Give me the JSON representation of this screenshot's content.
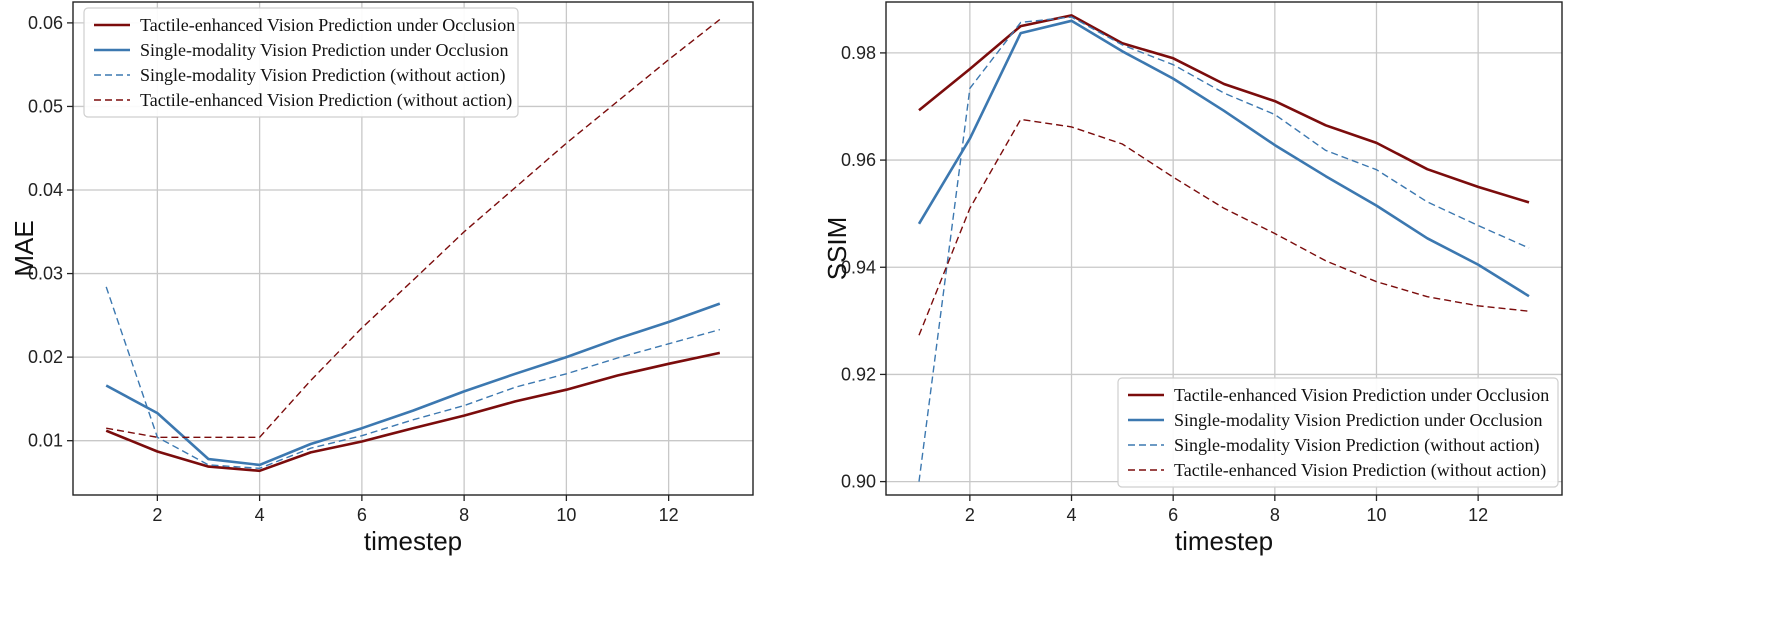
{
  "chart_data": [
    {
      "type": "line",
      "xlabel": "timestep",
      "ylabel": "MAE",
      "x": [
        1,
        2,
        3,
        4,
        5,
        6,
        7,
        8,
        9,
        10,
        11,
        12,
        13
      ],
      "xticks": [
        2,
        4,
        6,
        8,
        10,
        12
      ],
      "xlim": [
        0.35,
        13.65
      ],
      "ylim": [
        0.0035,
        0.0625
      ],
      "yticks": [
        0.01,
        0.02,
        0.03,
        0.04,
        0.05,
        0.06
      ],
      "ytick_labels": [
        "0.01",
        "0.02",
        "0.03",
        "0.04",
        "0.05",
        "0.06"
      ],
      "grid": true,
      "legend_position": "top-left",
      "series": [
        {
          "name": "Tactile-enhanced Vision Prediction under Occlusion",
          "color": "#7b0c0c",
          "style": "solid",
          "values": [
            0.0112,
            0.0087,
            0.0069,
            0.0064,
            0.0086,
            0.0099,
            0.0115,
            0.013,
            0.0147,
            0.0161,
            0.0178,
            0.0192,
            0.0205
          ]
        },
        {
          "name": "Single-modality Vision Prediction under Occlusion",
          "color": "#3c78b0",
          "style": "solid",
          "values": [
            0.0166,
            0.0133,
            0.0078,
            0.0071,
            0.0096,
            0.0115,
            0.0136,
            0.0159,
            0.018,
            0.02,
            0.0222,
            0.0242,
            0.0264
          ]
        },
        {
          "name": "Single-modality Vision Prediction (without action)",
          "color": "#3c78b0",
          "style": "dashed",
          "values": [
            0.0284,
            0.0104,
            0.0071,
            0.0067,
            0.0091,
            0.0106,
            0.0125,
            0.0142,
            0.0164,
            0.018,
            0.0199,
            0.0216,
            0.0233
          ]
        },
        {
          "name": "Tactile-enhanced Vision Prediction (without action)",
          "color": "#7b0c0c",
          "style": "dashed",
          "values": [
            0.0115,
            0.0104,
            0.0104,
            0.0104,
            0.0172,
            0.0235,
            0.0292,
            0.035,
            0.0403,
            0.0456,
            0.0506,
            0.0556,
            0.0604
          ]
        }
      ]
    },
    {
      "type": "line",
      "xlabel": "timestep",
      "ylabel": "SSIM",
      "x": [
        1,
        2,
        3,
        4,
        5,
        6,
        7,
        8,
        9,
        10,
        11,
        12,
        13
      ],
      "xticks": [
        2,
        4,
        6,
        8,
        10,
        12
      ],
      "xlim": [
        0.35,
        13.65
      ],
      "ylim": [
        0.8975,
        0.9895
      ],
      "yticks": [
        0.9,
        0.92,
        0.94,
        0.96,
        0.98
      ],
      "ytick_labels": [
        "0.90",
        "0.92",
        "0.94",
        "0.96",
        "0.98"
      ],
      "grid": true,
      "legend_position": "bottom-right",
      "series": [
        {
          "name": "Tactile-enhanced Vision Prediction under Occlusion",
          "color": "#7b0c0c",
          "style": "solid",
          "values": [
            0.9693,
            0.977,
            0.985,
            0.987,
            0.9818,
            0.979,
            0.9742,
            0.971,
            0.9665,
            0.9632,
            0.9583,
            0.955,
            0.9521
          ]
        },
        {
          "name": "Single-modality Vision Prediction under Occlusion",
          "color": "#3c78b0",
          "style": "solid",
          "values": [
            0.9481,
            0.964,
            0.9837,
            0.986,
            0.9803,
            0.9752,
            0.9692,
            0.9628,
            0.957,
            0.9515,
            0.9454,
            0.9405,
            0.9346
          ]
        },
        {
          "name": "Single-modality Vision Prediction (without action)",
          "color": "#3c78b0",
          "style": "dashed",
          "values": [
            0.9,
            0.9734,
            0.9857,
            0.9867,
            0.9815,
            0.9778,
            0.9725,
            0.9685,
            0.9618,
            0.9582,
            0.9522,
            0.9478,
            0.9436
          ]
        },
        {
          "name": "Tactile-enhanced Vision Prediction (without action)",
          "color": "#7b0c0c",
          "style": "dashed",
          "values": [
            0.9273,
            0.951,
            0.9676,
            0.9662,
            0.963,
            0.9568,
            0.951,
            0.9463,
            0.9412,
            0.9373,
            0.9345,
            0.9328,
            0.9318
          ]
        }
      ]
    }
  ]
}
